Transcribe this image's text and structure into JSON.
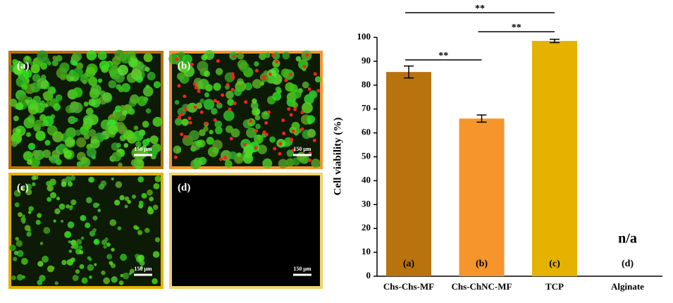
{
  "panels": [
    {
      "label": "(a)",
      "scale": "150 μm",
      "border": "#b8720e",
      "cells": "green"
    },
    {
      "label": "(b)",
      "scale": "150 μm",
      "border": "#f5952c",
      "cells": "mixed"
    },
    {
      "label": "(c)",
      "scale": "150 μm",
      "border": "#e5b200",
      "cells": "sparse"
    },
    {
      "label": "(d)",
      "scale": "150 μm",
      "border": "#f2d36b",
      "cells": "none"
    }
  ],
  "chart_data": {
    "type": "bar",
    "ylabel": "Cell viability (%)",
    "categories": [
      "Chs-Chs-MF",
      "Chs-ChNC-MF",
      "TCP",
      "Alginate"
    ],
    "values": [
      85.5,
      66,
      98.5,
      null
    ],
    "errors": [
      2.5,
      1.5,
      0.7,
      null
    ],
    "value_labels": [
      null,
      null,
      null,
      "n/a"
    ],
    "bar_labels": [
      "(a)",
      "(b)",
      "(c)",
      "(d)"
    ],
    "colors": [
      "#b8720e",
      "#f5952c",
      "#e5b200",
      "#cccccc"
    ],
    "ylim": [
      0,
      100
    ],
    "yticks": [
      0,
      10,
      20,
      30,
      40,
      50,
      60,
      70,
      80,
      90,
      100
    ],
    "significance": [
      {
        "between": [
          "Chs-Chs-MF",
          "TCP"
        ],
        "label": "**"
      },
      {
        "between": [
          "Chs-ChNC-MF",
          "TCP"
        ],
        "label": "**"
      },
      {
        "between": [
          "Chs-Chs-MF",
          "Chs-ChNC-MF"
        ],
        "label": "**"
      }
    ]
  }
}
